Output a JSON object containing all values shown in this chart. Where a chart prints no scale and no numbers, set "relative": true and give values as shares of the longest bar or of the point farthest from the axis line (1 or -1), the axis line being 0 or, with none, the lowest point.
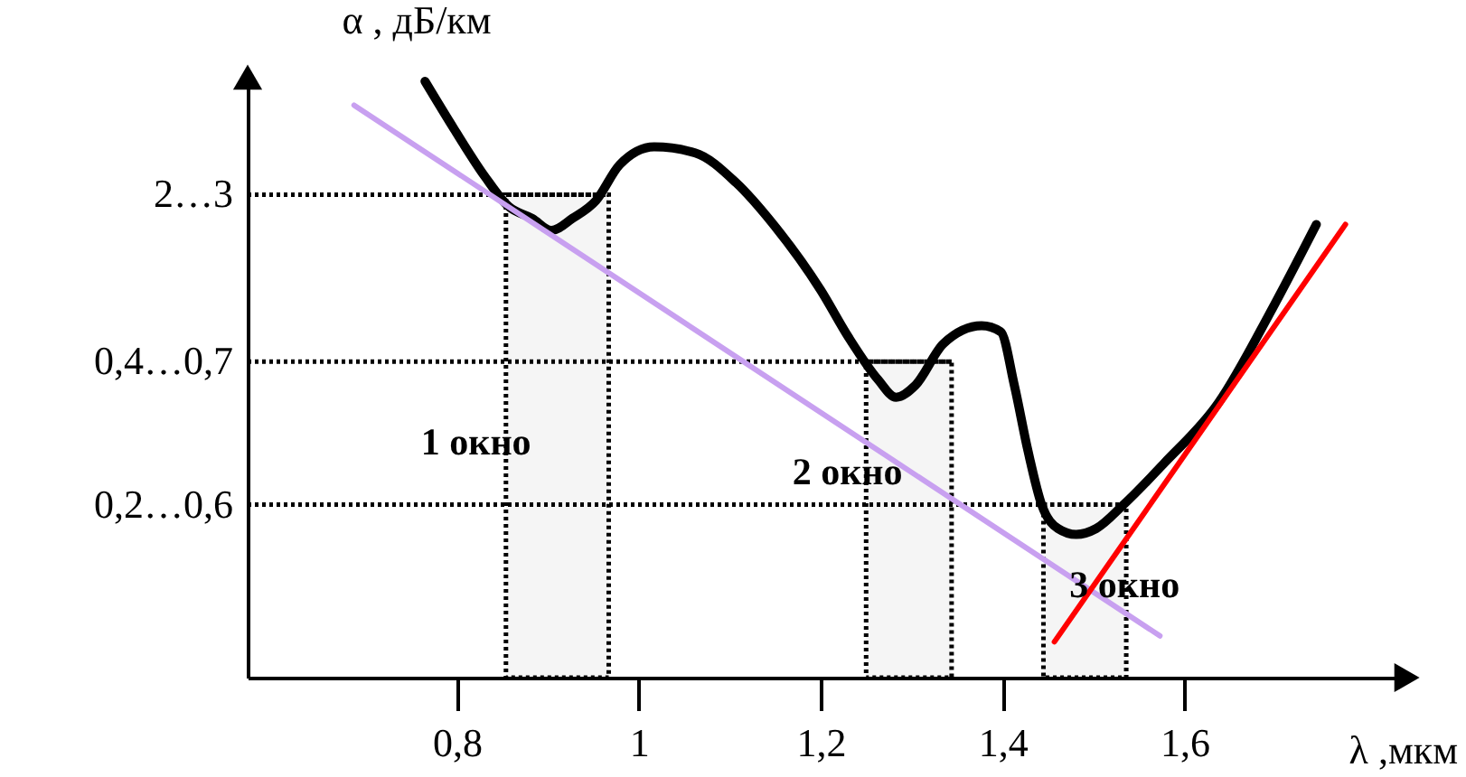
{
  "chart_data": {
    "type": "line",
    "xlabel": "λ ,мкм",
    "ylabel": "α , дБ/км",
    "relative": true,
    "xlim": [
      0.57,
      1.84
    ],
    "xticks": [
      {
        "value": 0.8,
        "label": "0,8"
      },
      {
        "value": 1,
        "label": "1"
      },
      {
        "value": 1.2,
        "label": "1,2"
      },
      {
        "value": 1.4,
        "label": "1,4"
      },
      {
        "value": 1.6,
        "label": "1,6"
      }
    ],
    "series": [
      {
        "color": "#000000",
        "x": [
          0.765,
          0.797,
          0.831,
          0.857,
          0.883,
          0.904,
          0.927,
          0.953,
          0.979,
          1.017,
          1.062,
          1.107,
          1.148,
          1.2,
          1.231,
          1.263,
          1.283,
          1.304,
          1.335,
          1.377,
          1.398,
          1.413,
          1.428,
          1.443,
          1.461,
          1.481,
          1.503,
          1.533,
          1.578,
          1.637,
          1.697,
          1.745
        ],
        "values": [
          1.0,
          0.92,
          0.84,
          0.79,
          0.77,
          0.75,
          0.77,
          0.8,
          0.86,
          0.89,
          0.88,
          0.83,
          0.76,
          0.65,
          0.57,
          0.5,
          0.47,
          0.49,
          0.56,
          0.59,
          0.58,
          0.49,
          0.38,
          0.29,
          0.25,
          0.24,
          0.25,
          0.29,
          0.36,
          0.46,
          0.62,
          0.76
        ]
      },
      {
        "color": "#c8a0f0",
        "x": [
          0.687,
          1.573
        ],
        "values": [
          0.96,
          0.07
        ]
      },
      {
        "color": "#ff0000",
        "x": [
          1.457,
          1.777
        ],
        "values": [
          0.06,
          0.76
        ]
      }
    ],
    "ref_lines": [
      {
        "axis": "y",
        "value": 0.81,
        "label": "2…3",
        "line_style": "dotted"
      },
      {
        "axis": "y",
        "value": 0.53,
        "label": "0,4…0,7",
        "line_style": "dotted"
      },
      {
        "axis": "y",
        "value": 0.29,
        "label": "0,2…0,6",
        "line_style": "dotted"
      }
    ],
    "bands": [
      {
        "axis": "x",
        "from": 0.854,
        "to": 0.967,
        "label": "1 окно"
      },
      {
        "axis": "x",
        "from": 1.25,
        "to": 1.344,
        "label": "2 окно"
      },
      {
        "axis": "x",
        "from": 1.445,
        "to": 1.536,
        "label": "3 окно"
      }
    ]
  }
}
